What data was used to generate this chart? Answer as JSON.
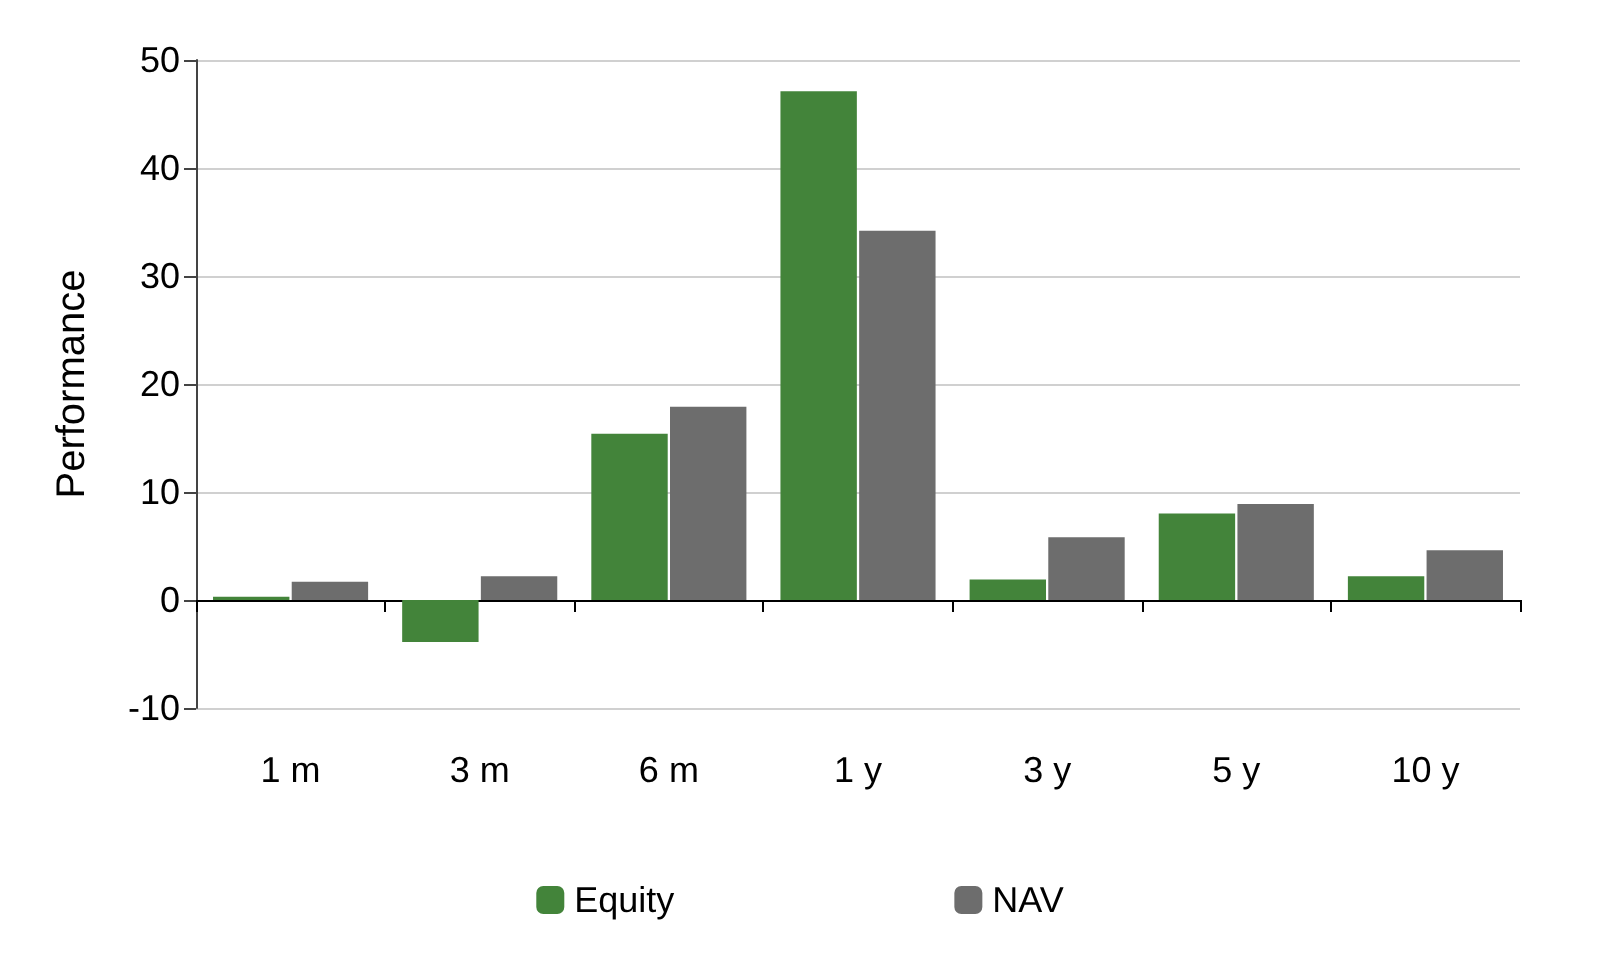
{
  "chart_data": {
    "type": "bar",
    "ylabel": "Performance",
    "categories": [
      "1 m",
      "3 m",
      "6 m",
      "1 y",
      "3 y",
      "5 y",
      "10 y"
    ],
    "series": [
      {
        "name": "Equity",
        "color": "#43843a",
        "values": [
          0.3,
          -3.9,
          15.4,
          47.1,
          1.9,
          8.0,
          2.2
        ]
      },
      {
        "name": "NAV",
        "color": "#6d6d6d",
        "values": [
          1.7,
          2.2,
          17.9,
          34.2,
          5.8,
          8.9,
          4.6
        ]
      }
    ],
    "ylim": [
      -10,
      50
    ],
    "yticks": [
      -10,
      0,
      10,
      20,
      30,
      40,
      50
    ],
    "grid": "y",
    "legend": "bottom"
  }
}
